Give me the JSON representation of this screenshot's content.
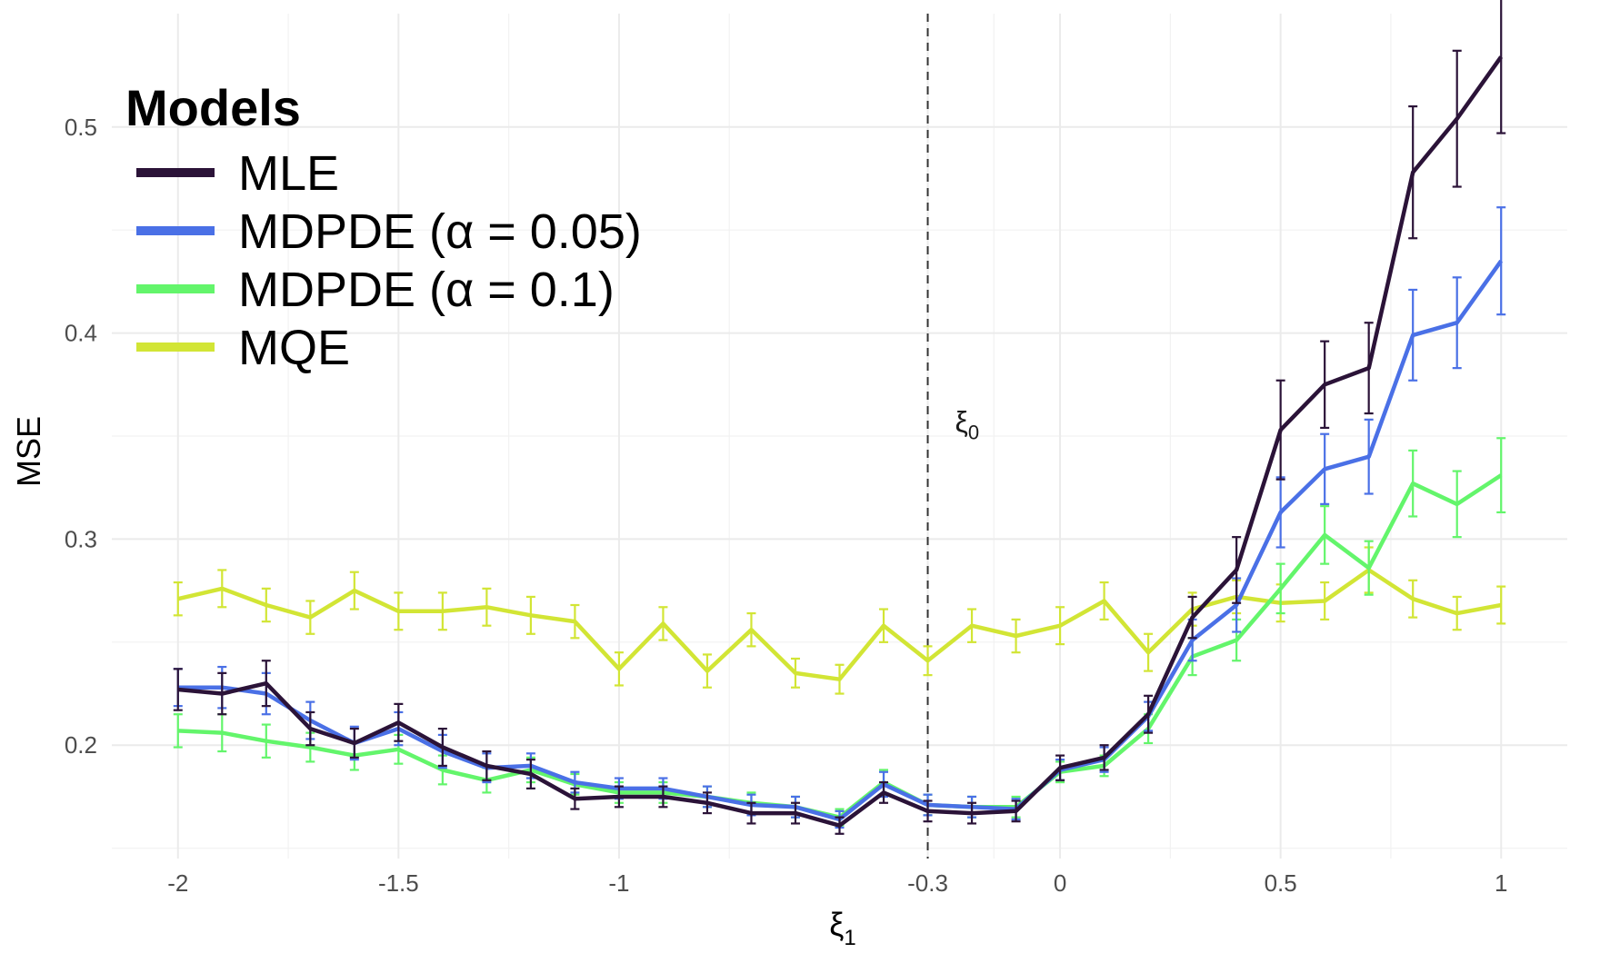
{
  "chart_data": {
    "type": "line",
    "xlabel": "ξ",
    "xlabel_sub": "1",
    "ylabel": "MSE",
    "xlim": [
      -2.15,
      1.15
    ],
    "ylim": [
      0.145,
      0.555
    ],
    "x_ticks": [
      -2,
      -1.5,
      -1,
      -0.3,
      0,
      0.5,
      1
    ],
    "x_tick_labels": [
      "-2",
      "-1.5",
      "-1",
      "-0.3",
      "0",
      "0.5",
      "1"
    ],
    "x_minor_gridlines": [
      -1.75,
      -1.25,
      -0.75,
      -0.15,
      0.25,
      0.75
    ],
    "y_ticks": [
      0.2,
      0.3,
      0.4,
      0.5
    ],
    "y_tick_labels": [
      "0.2",
      "0.3",
      "0.4",
      "0.5"
    ],
    "y_minor_gridlines": [
      0.15,
      0.25,
      0.35,
      0.45
    ],
    "grid": true,
    "vline": {
      "x": -0.3,
      "style": "dashed",
      "label": "ξ",
      "label_sub": "0"
    },
    "legend": {
      "title": "Models",
      "position": "top-left"
    },
    "x": [
      -2,
      -1.9,
      -1.8,
      -1.7,
      -1.6,
      -1.5,
      -1.4,
      -1.3,
      -1.2,
      -1.1,
      -1,
      -0.9,
      -0.8,
      -0.7,
      -0.6,
      -0.5,
      -0.4,
      -0.3,
      -0.2,
      -0.1,
      0,
      0.1,
      0.2,
      0.3,
      0.4,
      0.5,
      0.6,
      0.7,
      0.8,
      0.9,
      1
    ],
    "series": [
      {
        "name": "MLE",
        "color": "#2b1338",
        "values": [
          0.227,
          0.225,
          0.23,
          0.208,
          0.201,
          0.211,
          0.199,
          0.19,
          0.186,
          0.174,
          0.175,
          0.175,
          0.172,
          0.167,
          0.167,
          0.161,
          0.177,
          0.168,
          0.167,
          0.168,
          0.189,
          0.194,
          0.215,
          0.262,
          0.285,
          0.353,
          0.375,
          0.383,
          0.478,
          0.504,
          0.534
        ],
        "errors": [
          0.01,
          0.01,
          0.011,
          0.008,
          0.007,
          0.009,
          0.009,
          0.007,
          0.007,
          0.005,
          0.005,
          0.005,
          0.005,
          0.005,
          0.005,
          0.004,
          0.005,
          0.005,
          0.005,
          0.005,
          0.006,
          0.006,
          0.009,
          0.01,
          0.016,
          0.024,
          0.021,
          0.022,
          0.032,
          0.033,
          0.037
        ]
      },
      {
        "name": "MDPDE (α = 0.05)",
        "color": "#4a70e6",
        "values": [
          0.228,
          0.228,
          0.225,
          0.212,
          0.201,
          0.208,
          0.197,
          0.189,
          0.19,
          0.182,
          0.179,
          0.179,
          0.175,
          0.171,
          0.17,
          0.164,
          0.181,
          0.171,
          0.17,
          0.169,
          0.188,
          0.193,
          0.214,
          0.251,
          0.268,
          0.313,
          0.334,
          0.34,
          0.399,
          0.405,
          0.435
        ],
        "errors": [
          0.009,
          0.01,
          0.01,
          0.009,
          0.008,
          0.008,
          0.008,
          0.007,
          0.006,
          0.005,
          0.005,
          0.005,
          0.005,
          0.005,
          0.005,
          0.004,
          0.006,
          0.005,
          0.005,
          0.005,
          0.005,
          0.006,
          0.007,
          0.01,
          0.013,
          0.017,
          0.017,
          0.018,
          0.022,
          0.022,
          0.026
        ]
      },
      {
        "name": "MDPDE (α = 0.1)",
        "color": "#63f56b",
        "values": [
          0.207,
          0.206,
          0.202,
          0.199,
          0.195,
          0.198,
          0.188,
          0.183,
          0.188,
          0.181,
          0.177,
          0.177,
          0.175,
          0.172,
          0.17,
          0.165,
          0.182,
          0.171,
          0.17,
          0.17,
          0.187,
          0.19,
          0.208,
          0.243,
          0.251,
          0.276,
          0.302,
          0.286,
          0.327,
          0.317,
          0.331
        ],
        "errors": [
          0.008,
          0.009,
          0.008,
          0.007,
          0.007,
          0.007,
          0.007,
          0.006,
          0.006,
          0.005,
          0.005,
          0.005,
          0.005,
          0.005,
          0.005,
          0.004,
          0.006,
          0.005,
          0.005,
          0.005,
          0.005,
          0.005,
          0.007,
          0.009,
          0.01,
          0.012,
          0.014,
          0.013,
          0.016,
          0.016,
          0.018
        ]
      },
      {
        "name": "MQE",
        "color": "#d2e535",
        "values": [
          0.271,
          0.276,
          0.268,
          0.262,
          0.275,
          0.265,
          0.265,
          0.267,
          0.263,
          0.26,
          0.237,
          0.259,
          0.236,
          0.256,
          0.235,
          0.232,
          0.258,
          0.241,
          0.258,
          0.253,
          0.258,
          0.27,
          0.245,
          0.266,
          0.272,
          0.269,
          0.27,
          0.285,
          0.271,
          0.264,
          0.268
        ],
        "errors": [
          0.008,
          0.009,
          0.008,
          0.008,
          0.009,
          0.009,
          0.009,
          0.009,
          0.009,
          0.008,
          0.008,
          0.008,
          0.008,
          0.008,
          0.007,
          0.007,
          0.008,
          0.007,
          0.008,
          0.008,
          0.009,
          0.009,
          0.009,
          0.008,
          0.008,
          0.009,
          0.009,
          0.011,
          0.009,
          0.008,
          0.009
        ]
      }
    ]
  }
}
